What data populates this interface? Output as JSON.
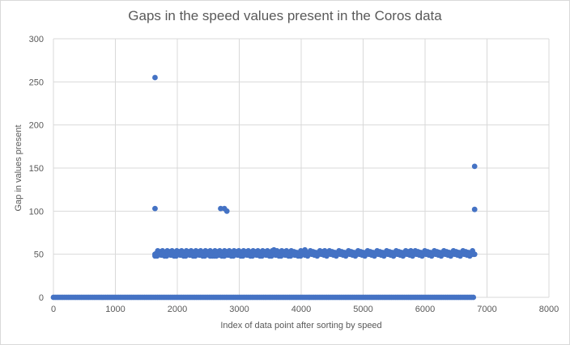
{
  "chart_data": {
    "type": "scatter",
    "title": "Gaps in the speed values present in the Coros data",
    "xlabel": "Index of data point after sorting by speed",
    "ylabel": "Gap in values present",
    "xlim": [
      0,
      8000
    ],
    "ylim": [
      0,
      300
    ],
    "x_ticks": [
      "0",
      "1000",
      "2000",
      "3000",
      "4000",
      "5000",
      "6000",
      "7000",
      "8000"
    ],
    "y_ticks": [
      "0",
      "50",
      "100",
      "150",
      "200",
      "250",
      "300"
    ],
    "grid": true,
    "color": "#4472c4",
    "baseline": {
      "y": 0,
      "x_from": 0,
      "x_to": 6800,
      "step": 30
    },
    "band": {
      "x_from": 1640,
      "x_to": 6800,
      "y_values": [
        48,
        49,
        50,
        51,
        52,
        53,
        54
      ]
    },
    "points": [
      {
        "x": 1640,
        "y": 255
      },
      {
        "x": 1640,
        "y": 103
      },
      {
        "x": 2700,
        "y": 103
      },
      {
        "x": 2760,
        "y": 103
      },
      {
        "x": 2800,
        "y": 100
      },
      {
        "x": 6800,
        "y": 152
      },
      {
        "x": 6800,
        "y": 102
      },
      {
        "x": 3560,
        "y": 55
      },
      {
        "x": 4060,
        "y": 55
      },
      {
        "x": 4380,
        "y": 54
      },
      {
        "x": 5770,
        "y": 54
      },
      {
        "x": 2530,
        "y": 48
      },
      {
        "x": 2630,
        "y": 48
      },
      {
        "x": 2760,
        "y": 48
      },
      {
        "x": 3990,
        "y": 48
      },
      {
        "x": 5490,
        "y": 48
      }
    ]
  }
}
